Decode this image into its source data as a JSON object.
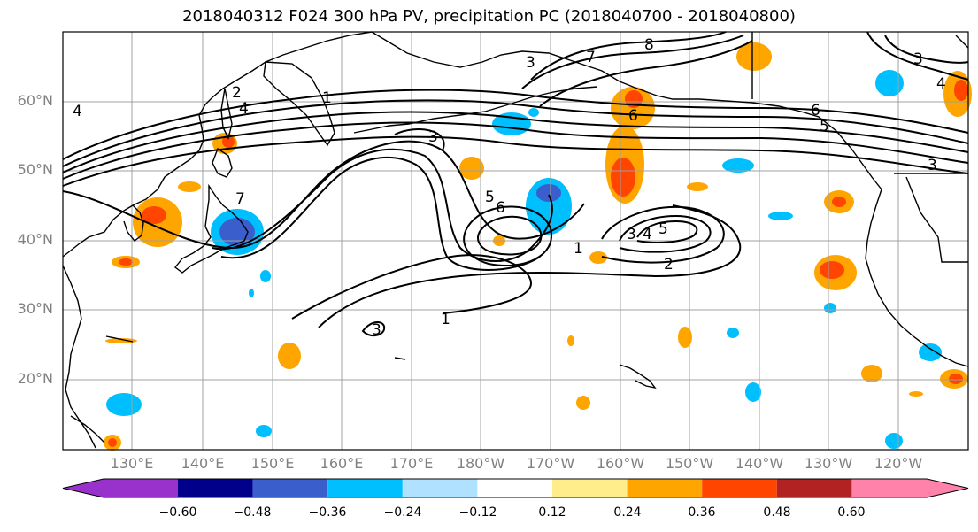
{
  "title": "2018040312 F024 300 hPa PV, precipitation PC (2018040700 - 2018040800)",
  "map": {
    "lat_labels": [
      "60°N",
      "50°N",
      "40°N",
      "30°N",
      "20°N"
    ],
    "lon_labels": [
      "130°E",
      "140°E",
      "150°E",
      "160°E",
      "170°E",
      "180°W",
      "170°W",
      "160°W",
      "150°W",
      "140°W",
      "130°W",
      "120°W"
    ],
    "contour_labels": [
      "1",
      "2",
      "3",
      "4",
      "5",
      "6",
      "7",
      "8"
    ]
  },
  "colorbar": {
    "ticks": [
      "−0.60",
      "−0.48",
      "−0.36",
      "−0.24",
      "−0.12",
      "0.12",
      "0.24",
      "0.36",
      "0.48",
      "0.60"
    ],
    "colors": [
      "#9932cc",
      "#00008b",
      "#3a5fcd",
      "#00bfff",
      "#b0e2ff",
      "#ffffff",
      "#ffec8b",
      "#ffa500",
      "#ff4500",
      "#b22222",
      "#ff82ab"
    ]
  },
  "colors": {
    "grid": "#a0a0a0",
    "contour": "#000000"
  }
}
